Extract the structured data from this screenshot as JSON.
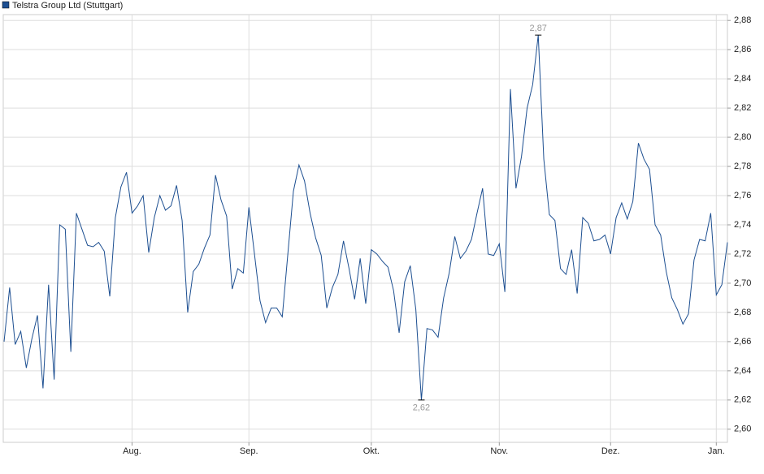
{
  "chart_data": {
    "type": "line",
    "series": [
      {
        "name": "Telstra Group Ltd (Stuttgart)",
        "color": "#1d4f91",
        "values": [
          2.66,
          2.697,
          2.658,
          2.667,
          2.642,
          2.662,
          2.678,
          2.628,
          2.699,
          2.634,
          2.74,
          2.737,
          2.653,
          2.748,
          2.737,
          2.726,
          2.725,
          2.728,
          2.722,
          2.691,
          2.745,
          2.766,
          2.776,
          2.748,
          2.753,
          2.76,
          2.721,
          2.745,
          2.76,
          2.75,
          2.753,
          2.767,
          2.743,
          2.68,
          2.708,
          2.713,
          2.724,
          2.733,
          2.774,
          2.757,
          2.746,
          2.696,
          2.71,
          2.707,
          2.752,
          2.72,
          2.688,
          2.673,
          2.683,
          2.683,
          2.677,
          2.72,
          2.763,
          2.781,
          2.77,
          2.748,
          2.731,
          2.719,
          2.683,
          2.697,
          2.706,
          2.729,
          2.71,
          2.689,
          2.717,
          2.686,
          2.723,
          2.72,
          2.715,
          2.711,
          2.695,
          2.666,
          2.701,
          2.712,
          2.682,
          2.62,
          2.669,
          2.668,
          2.663,
          2.69,
          2.707,
          2.732,
          2.717,
          2.722,
          2.73,
          2.748,
          2.765,
          2.72,
          2.719,
          2.727,
          2.694,
          2.833,
          2.765,
          2.787,
          2.82,
          2.836,
          2.87,
          2.785,
          2.747,
          2.743,
          2.71,
          2.706,
          2.723,
          2.693,
          2.745,
          2.741,
          2.729,
          2.73,
          2.733,
          2.72,
          2.745,
          2.755,
          2.744,
          2.756,
          2.796,
          2.785,
          2.778,
          2.74,
          2.733,
          2.708,
          2.69,
          2.682,
          2.672,
          2.679,
          2.716,
          2.73,
          2.729,
          2.748,
          2.692,
          2.699,
          2.728
        ]
      }
    ],
    "categories": [
      null,
      null,
      null,
      null,
      null,
      null,
      null,
      null,
      null,
      null,
      null,
      null,
      null,
      null,
      null,
      null,
      null,
      null,
      null,
      null,
      null,
      null,
      null,
      "Aug.",
      null,
      null,
      null,
      null,
      null,
      null,
      null,
      null,
      null,
      null,
      null,
      null,
      null,
      null,
      null,
      null,
      null,
      null,
      null,
      null,
      "Sep.",
      null,
      null,
      null,
      null,
      null,
      null,
      null,
      null,
      null,
      null,
      null,
      null,
      null,
      null,
      null,
      null,
      null,
      null,
      null,
      null,
      null,
      "Okt.",
      null,
      null,
      null,
      null,
      null,
      null,
      null,
      null,
      null,
      null,
      null,
      null,
      null,
      null,
      null,
      null,
      null,
      null,
      null,
      null,
      null,
      null,
      "Nov.",
      null,
      null,
      null,
      null,
      null,
      null,
      null,
      null,
      null,
      null,
      null,
      null,
      null,
      null,
      null,
      null,
      null,
      null,
      null,
      "Dez.",
      null,
      null,
      null,
      null,
      null,
      null,
      null,
      null,
      null,
      null,
      null,
      null,
      null,
      null,
      null,
      null,
      null,
      null,
      "Jan.",
      null,
      null
    ],
    "ylim": [
      2.591,
      2.884
    ],
    "yticks": [
      {
        "value": 2.6,
        "label": "2,60"
      },
      {
        "value": 2.62,
        "label": "2,62"
      },
      {
        "value": 2.64,
        "label": "2,64"
      },
      {
        "value": 2.66,
        "label": "2,66"
      },
      {
        "value": 2.68,
        "label": "2,68"
      },
      {
        "value": 2.7,
        "label": "2,70"
      },
      {
        "value": 2.72,
        "label": "2,72"
      },
      {
        "value": 2.74,
        "label": "2,74"
      },
      {
        "value": 2.76,
        "label": "2,76"
      },
      {
        "value": 2.78,
        "label": "2,78"
      },
      {
        "value": 2.8,
        "label": "2,80"
      },
      {
        "value": 2.82,
        "label": "2,82"
      },
      {
        "value": 2.84,
        "label": "2,84"
      },
      {
        "value": 2.86,
        "label": "2,86"
      },
      {
        "value": 2.88,
        "label": "2,88"
      }
    ],
    "annotations": [
      {
        "value": 2.87,
        "label": "2,87"
      },
      {
        "value": 2.62,
        "label": "2,62"
      }
    ],
    "grid": true,
    "legend": "top-left"
  }
}
